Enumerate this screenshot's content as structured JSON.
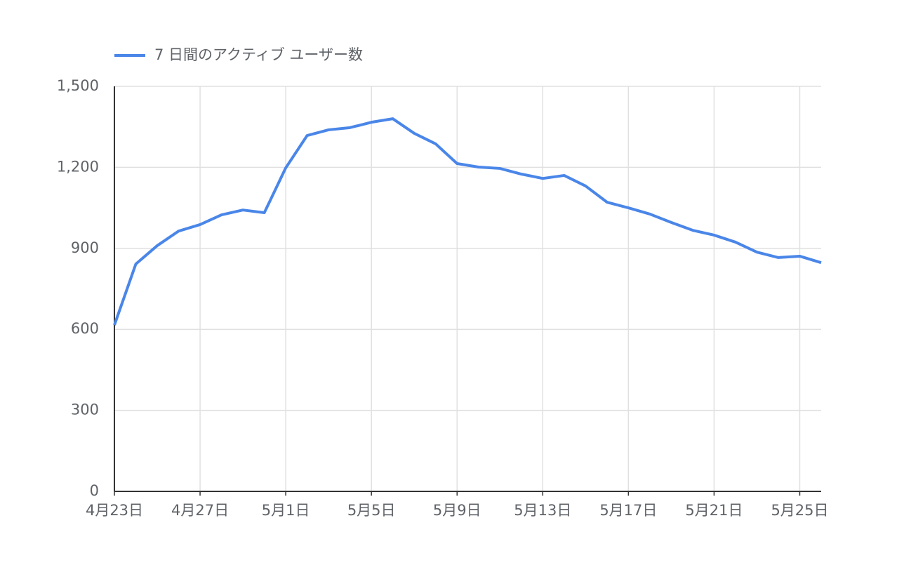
{
  "chart_data": {
    "type": "line",
    "categories": [
      "4月23日",
      null,
      null,
      null,
      "4月27日",
      null,
      null,
      null,
      "5月1日",
      null,
      null,
      null,
      "5月5日",
      null,
      null,
      null,
      "5月9日",
      null,
      null,
      null,
      "5月13日",
      null,
      null,
      null,
      "5月17日",
      null,
      null,
      null,
      "5月21日",
      null,
      null,
      null,
      "5月25日",
      null
    ],
    "series": [
      {
        "name": "7 日間のアクティブ ユーザー数",
        "color": "#4a86e8",
        "values": [
          616,
          842,
          910,
          964,
          988,
          1024,
          1042,
          1032,
          1198,
          1318,
          1339,
          1347,
          1367,
          1380,
          1326,
          1287,
          1214,
          1201,
          1196,
          1175,
          1159,
          1170,
          1131,
          1071,
          1050,
          1027,
          996,
          967,
          949,
          923,
          886,
          866,
          871,
          847
        ]
      }
    ],
    "ylim": [
      0,
      1500
    ],
    "yticks": [
      0,
      300,
      600,
      900,
      {
        "value": 1200,
        "label": "1,200"
      },
      {
        "value": 1500,
        "label": "1,500"
      }
    ],
    "grid": true,
    "legend": "top"
  }
}
